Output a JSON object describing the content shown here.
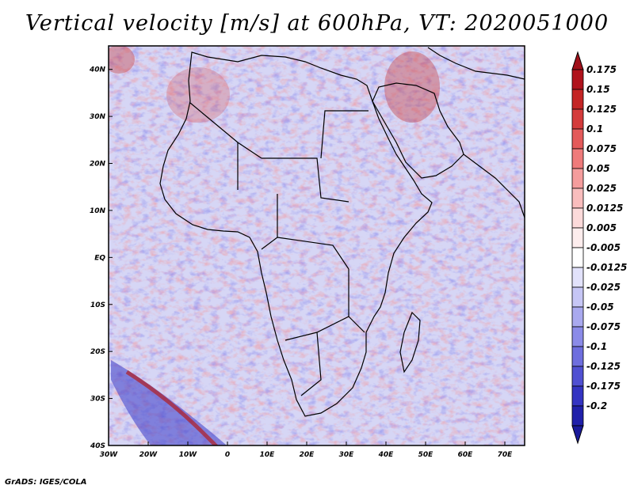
{
  "title": "Vertical velocity [m/s] at 600hPa, VT: 2020051000",
  "footer": "GrADS: IGES/COLA",
  "map": {
    "lat_range": [
      -40,
      45
    ],
    "lon_range": [
      -30,
      75
    ],
    "lat_ticks": [
      "40N",
      "30N",
      "20N",
      "10N",
      "EQ",
      "10S",
      "20S",
      "30S",
      "40S"
    ],
    "lon_ticks": [
      "30W",
      "20W",
      "10W",
      "0",
      "10E",
      "20E",
      "30E",
      "40E",
      "50E",
      "60E",
      "70E"
    ]
  },
  "colorbar": {
    "levels": [
      {
        "label": "0.175",
        "color": "#b0131c"
      },
      {
        "label": "0.15",
        "color": "#c42525"
      },
      {
        "label": "0.125",
        "color": "#d43b3b"
      },
      {
        "label": "0.1",
        "color": "#e45a5a"
      },
      {
        "label": "0.075",
        "color": "#ef7b7b"
      },
      {
        "label": "0.05",
        "color": "#f59d9d"
      },
      {
        "label": "0.025",
        "color": "#f9bdbd"
      },
      {
        "label": "0.0125",
        "color": "#fcdada"
      },
      {
        "label": "0.005",
        "color": "#fdeded"
      },
      {
        "label": "-0.005",
        "color": "#ffffff"
      },
      {
        "label": "-0.0125",
        "color": "#e2e2fb"
      },
      {
        "label": "-0.025",
        "color": "#c6c6f5"
      },
      {
        "label": "-0.05",
        "color": "#a9a9ef"
      },
      {
        "label": "-0.075",
        "color": "#8b8be8"
      },
      {
        "label": "-0.1",
        "color": "#6e6ede"
      },
      {
        "label": "-0.125",
        "color": "#5050d2"
      },
      {
        "label": "-0.175",
        "color": "#3434c2"
      },
      {
        "label": "-0.2",
        "color": "#2020aa"
      }
    ],
    "top_color": "#a0101a",
    "bottom_color": "#1a1a9a"
  }
}
